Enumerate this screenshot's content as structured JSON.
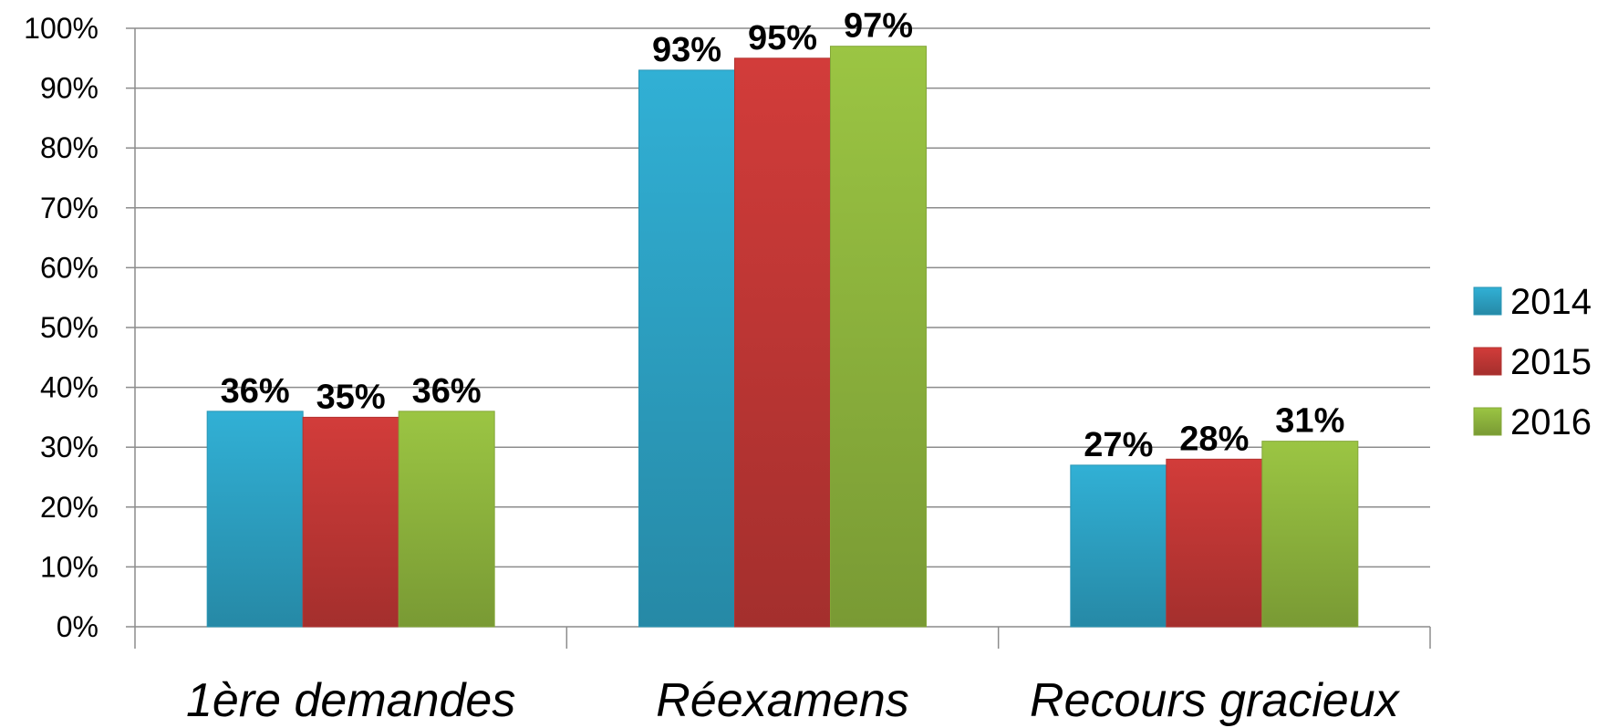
{
  "chart_data": {
    "type": "bar",
    "categories": [
      "1ère demandes",
      "Réexamens",
      "Recours gracieux"
    ],
    "series": [
      {
        "name": "2014",
        "values": [
          36,
          93,
          27
        ],
        "color": "#31B0D5"
      },
      {
        "name": "2015",
        "values": [
          35,
          95,
          28
        ],
        "color": "#D23C3A"
      },
      {
        "name": "2016",
        "values": [
          36,
          97,
          31
        ],
        "color": "#9BC543"
      }
    ],
    "data_labels": [
      [
        "36%",
        "93%",
        "27%"
      ],
      [
        "35%",
        "95%",
        "28%"
      ],
      [
        "36%",
        "97%",
        "31%"
      ]
    ],
    "yticks": [
      "0%",
      "10%",
      "20%",
      "30%",
      "40%",
      "50%",
      "60%",
      "70%",
      "80%",
      "90%",
      "100%"
    ],
    "ylim": [
      0,
      100
    ],
    "grid": true,
    "legend": "right"
  }
}
